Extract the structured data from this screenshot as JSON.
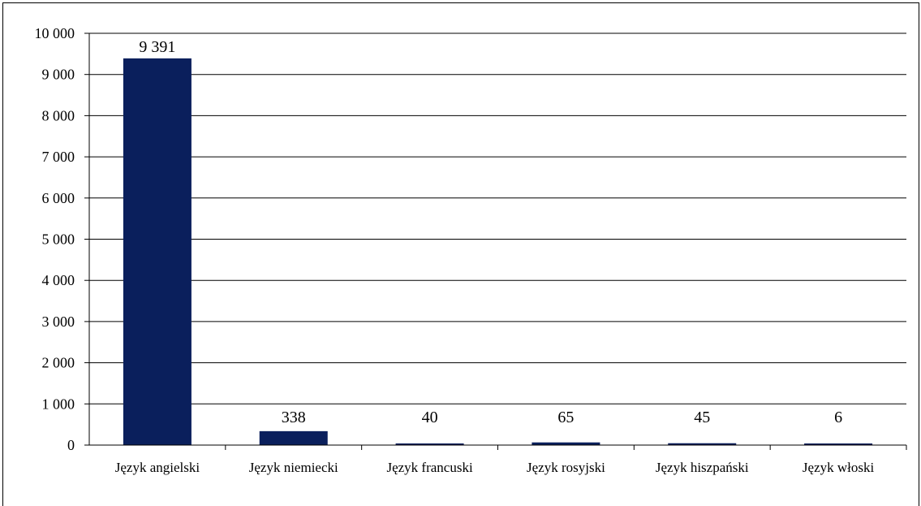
{
  "chart_data": {
    "type": "bar",
    "categories": [
      "Język angielski",
      "Język niemiecki",
      "Język francuski",
      "Język rosyjski",
      "Język hiszpański",
      "Język włoski"
    ],
    "values": [
      9391,
      338,
      40,
      65,
      45,
      6
    ],
    "data_labels": [
      "9 391",
      "338",
      "40",
      "65",
      "45",
      "6"
    ],
    "y_ticks": [
      0,
      1000,
      2000,
      3000,
      4000,
      5000,
      6000,
      7000,
      8000,
      9000,
      10000
    ],
    "y_tick_labels": [
      "0",
      "1 000",
      "2 000",
      "3 000",
      "4 000",
      "5 000",
      "6 000",
      "7 000",
      "8 000",
      "9 000",
      "10 000"
    ],
    "ylim": [
      0,
      10000
    ],
    "title": "",
    "xlabel": "",
    "ylabel": "",
    "grid": true,
    "legend": "none",
    "bar_color": "#0a1f5c"
  }
}
